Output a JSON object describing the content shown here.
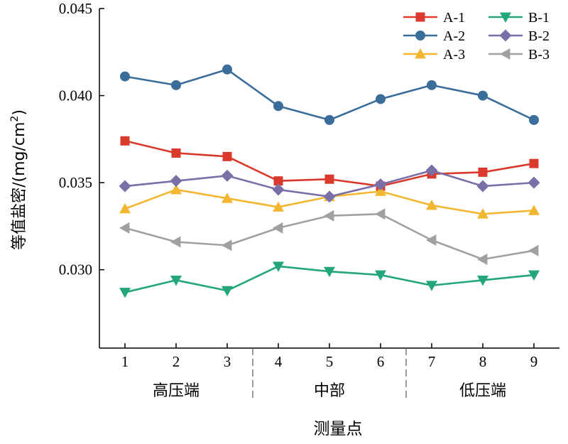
{
  "chart_data": {
    "type": "line",
    "x": [
      1,
      2,
      3,
      4,
      5,
      6,
      7,
      8,
      9
    ],
    "x_ticks": [
      "1",
      "2",
      "3",
      "4",
      "5",
      "6",
      "7",
      "8",
      "9"
    ],
    "xlim": [
      0.5,
      9.5
    ],
    "ylim": [
      0.0255,
      0.045
    ],
    "y_ticks": [
      "0.030",
      "0.035",
      "0.040",
      "0.045"
    ],
    "y_tick_values": [
      0.03,
      0.035,
      0.04,
      0.045
    ],
    "xlabel": "测量点",
    "ylabel_main": "等值盐密/(mg/cm",
    "ylabel_sup": "2",
    "ylabel_close": ")",
    "groups": [
      {
        "label": "高压端",
        "from": 1,
        "to": 3
      },
      {
        "label": "中部",
        "from": 4,
        "to": 6
      },
      {
        "label": "低压端",
        "from": 7,
        "to": 9
      }
    ],
    "group_separators": [
      3.5,
      6.5
    ],
    "legend_position": "top-right",
    "series": [
      {
        "name": "A-1",
        "color": "#d93a2b",
        "marker": "square",
        "values": [
          0.0374,
          0.0367,
          0.0365,
          0.0351,
          0.0352,
          0.0348,
          0.0355,
          0.0356,
          0.0361
        ]
      },
      {
        "name": "A-2",
        "color": "#3a6d9a",
        "marker": "circle",
        "values": [
          0.0411,
          0.0406,
          0.0415,
          0.0394,
          0.0386,
          0.0398,
          0.0406,
          0.04,
          0.0386
        ]
      },
      {
        "name": "A-3",
        "color": "#f2b630",
        "marker": "triangle-up",
        "values": [
          0.0335,
          0.0346,
          0.0341,
          0.0336,
          0.0342,
          0.0345,
          0.0337,
          0.0332,
          0.0334
        ]
      },
      {
        "name": "B-1",
        "color": "#23a67a",
        "marker": "triangle-down",
        "values": [
          0.0287,
          0.0294,
          0.0288,
          0.0302,
          0.0299,
          0.0297,
          0.0291,
          0.0294,
          0.0297
        ]
      },
      {
        "name": "B-2",
        "color": "#7a6fa6",
        "marker": "diamond",
        "values": [
          0.0348,
          0.0351,
          0.0354,
          0.0346,
          0.0342,
          0.0349,
          0.0357,
          0.0348,
          0.035
        ]
      },
      {
        "name": "B-3",
        "color": "#a0a0a0",
        "marker": "triangle-left",
        "values": [
          0.0324,
          0.0316,
          0.0314,
          0.0324,
          0.0331,
          0.0332,
          0.0317,
          0.0306,
          0.0311
        ]
      }
    ]
  }
}
